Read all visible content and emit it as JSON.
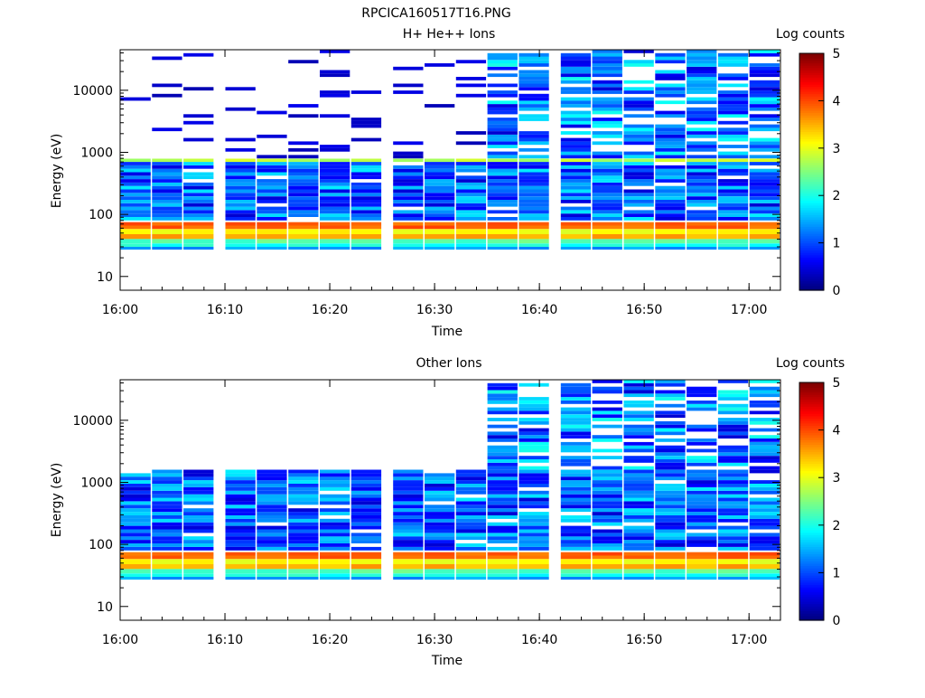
{
  "page_title": "RPCICA160517T16.PNG",
  "colorbar": {
    "label": "Log counts",
    "range": [
      0,
      5
    ],
    "ticks": [
      "0",
      "1",
      "2",
      "3",
      "4",
      "5"
    ],
    "colormap": "jet"
  },
  "chart_data": [
    {
      "type": "heatmap",
      "title": "H+ He++ Ions",
      "xlabel": "Time",
      "ylabel": "Energy (eV)",
      "y_scale": "log",
      "ylim": [
        6,
        45000
      ],
      "x_range": [
        "16:00",
        "17:03"
      ],
      "x_ticks": [
        "16:00",
        "16:10",
        "16:20",
        "16:30",
        "16:40",
        "16:50",
        "17:00"
      ],
      "y_ticks": [
        "10",
        "100",
        "1000",
        "10000"
      ],
      "time_bins": [
        "16:00",
        "16:03",
        "16:06",
        "16:10",
        "16:13",
        "16:16",
        "16:19",
        "16:22",
        "16:26",
        "16:29",
        "16:32",
        "16:35",
        "16:38",
        "16:42",
        "16:45",
        "16:48",
        "16:51",
        "16:54",
        "16:57",
        "17:00"
      ],
      "bands": [
        {
          "emin": 58,
          "emax": 75,
          "log_counts": 3.9,
          "note": "strong band"
        },
        {
          "emin": 48,
          "emax": 58,
          "log_counts": 3.1
        },
        {
          "emin": 40,
          "emax": 48,
          "log_counts": 3.5
        },
        {
          "emin": 34,
          "emax": 40,
          "log_counts": 2.3
        },
        {
          "emin": 30,
          "emax": 34,
          "log_counts": 2.0
        },
        {
          "emin": 27,
          "emax": 30,
          "log_counts": 1.4
        },
        {
          "emin": 700,
          "emax": 790,
          "log_counts": 2.8
        },
        {
          "emin": 80,
          "emax": 700,
          "log_counts": 1.3,
          "note": "variable background"
        },
        {
          "emin": 800,
          "emax": 45000,
          "log_counts": 0.6,
          "note": "sparse high-energy, enhanced 16:35-17:03"
        }
      ]
    },
    {
      "type": "heatmap",
      "title": "Other Ions",
      "xlabel": "Time",
      "ylabel": "Energy (eV)",
      "y_scale": "log",
      "ylim": [
        6,
        45000
      ],
      "x_range": [
        "16:00",
        "17:03"
      ],
      "x_ticks": [
        "16:00",
        "16:10",
        "16:20",
        "16:30",
        "16:40",
        "16:50",
        "17:00"
      ],
      "y_ticks": [
        "10",
        "100",
        "1000",
        "10000"
      ],
      "time_bins": [
        "16:00",
        "16:03",
        "16:06",
        "16:10",
        "16:13",
        "16:16",
        "16:19",
        "16:22",
        "16:26",
        "16:29",
        "16:32",
        "16:35",
        "16:38",
        "16:42",
        "16:45",
        "16:48",
        "16:51",
        "16:54",
        "16:57",
        "17:00"
      ],
      "bands": [
        {
          "emin": 58,
          "emax": 75,
          "log_counts": 3.9
        },
        {
          "emin": 48,
          "emax": 58,
          "log_counts": 3.1
        },
        {
          "emin": 40,
          "emax": 48,
          "log_counts": 3.5
        },
        {
          "emin": 34,
          "emax": 40,
          "log_counts": 2.3
        },
        {
          "emin": 30,
          "emax": 34,
          "log_counts": 2.0
        },
        {
          "emin": 27,
          "emax": 30,
          "log_counts": 1.4
        },
        {
          "emin": 80,
          "emax": 1600,
          "log_counts": 1.2,
          "note": "variable background"
        },
        {
          "emin": 1600,
          "emax": 45000,
          "log_counts": 0.7,
          "note": "present 16:35-17:03"
        }
      ]
    }
  ]
}
